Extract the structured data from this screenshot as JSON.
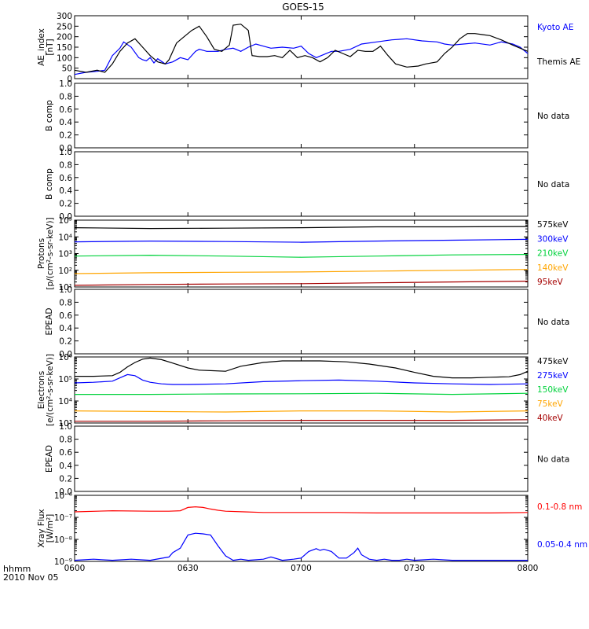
{
  "title": "GOES-15",
  "footer": {
    "line1": "hhmm",
    "line2": "2010 Nov 05"
  },
  "x_axis": {
    "ticks": [
      "0600",
      "0630",
      "0700",
      "0730",
      "0800"
    ],
    "range": [
      0,
      120
    ],
    "unit": "minutes after 0600"
  },
  "colors": {
    "black": "#000000",
    "blue": "#0000ff",
    "green": "#00d23c",
    "orange": "#ffa500",
    "red": "#ff0000",
    "darkred": "#a50000"
  },
  "chart_data": [
    {
      "id": "ae",
      "type": "line",
      "ylabel": [
        "AE_index",
        "[nT]"
      ],
      "scale": "linear",
      "ylim": [
        0,
        300
      ],
      "yticks": [
        "0",
        "50",
        "100",
        "150",
        "200",
        "250",
        "300"
      ],
      "series": [
        {
          "name": "Kyoto AE",
          "color": "#0000ff",
          "x": [
            0,
            3,
            6,
            8,
            10,
            12,
            13,
            15,
            17,
            18,
            19,
            20,
            21,
            22,
            24,
            26,
            28,
            30,
            32,
            33,
            35,
            38,
            40,
            42,
            44,
            46,
            48,
            50,
            52,
            55,
            58,
            60,
            62,
            64,
            66,
            68,
            70,
            73,
            76,
            80,
            84,
            88,
            92,
            96,
            98,
            100,
            103,
            106,
            110,
            113,
            116,
            118,
            120
          ],
          "y": [
            20,
            30,
            35,
            40,
            110,
            145,
            175,
            150,
            100,
            90,
            85,
            100,
            75,
            95,
            70,
            80,
            100,
            90,
            130,
            140,
            130,
            130,
            140,
            145,
            130,
            150,
            165,
            155,
            145,
            150,
            145,
            155,
            120,
            100,
            115,
            130,
            130,
            140,
            165,
            175,
            185,
            190,
            180,
            175,
            165,
            160,
            165,
            170,
            160,
            175,
            165,
            150,
            120
          ]
        },
        {
          "name": "Themis AE",
          "color": "#000000",
          "x": [
            0,
            3,
            6,
            8,
            10,
            12,
            14,
            16,
            18,
            20,
            22,
            24,
            25,
            27,
            29,
            31,
            33,
            35,
            37,
            39,
            41,
            42,
            44,
            46,
            47,
            49,
            51,
            53,
            55,
            57,
            59,
            61,
            63,
            65,
            67,
            69,
            71,
            73,
            75,
            77,
            79,
            81,
            83,
            85,
            88,
            91,
            93,
            96,
            98,
            100,
            102,
            104,
            106,
            108,
            110,
            113,
            116,
            120
          ],
          "y": [
            40,
            30,
            40,
            30,
            70,
            130,
            170,
            190,
            150,
            110,
            80,
            70,
            90,
            170,
            200,
            230,
            250,
            200,
            140,
            130,
            160,
            255,
            260,
            230,
            110,
            105,
            105,
            110,
            100,
            135,
            100,
            110,
            100,
            80,
            100,
            135,
            120,
            105,
            135,
            130,
            130,
            155,
            110,
            70,
            55,
            60,
            70,
            80,
            120,
            150,
            190,
            215,
            215,
            210,
            205,
            185,
            160,
            130
          ]
        }
      ]
    },
    {
      "id": "b1",
      "type": "line",
      "ylabel": [
        "B comp"
      ],
      "scale": "linear",
      "ylim": [
        0,
        1
      ],
      "yticks": [
        "0.0",
        "0.2",
        "0.4",
        "0.6",
        "0.8",
        "1.0"
      ],
      "series": [],
      "note": "No data"
    },
    {
      "id": "b2",
      "type": "line",
      "ylabel": [
        "B comp"
      ],
      "scale": "linear",
      "ylim": [
        0,
        1
      ],
      "yticks": [
        "0.0",
        "0.2",
        "0.4",
        "0.6",
        "0.8",
        "1.0"
      ],
      "series": [],
      "note": "No data"
    },
    {
      "id": "protons",
      "type": "line",
      "ylabel": [
        "Protons",
        "[p/(cm²-s-sr-keV)]"
      ],
      "scale": "log",
      "ylim": [
        1,
        5
      ],
      "yticks": [
        "10¹",
        "10²",
        "10³",
        "10⁴",
        "10⁵"
      ],
      "series": [
        {
          "name": "575keV",
          "color": "#000000",
          "x": [
            0,
            20,
            40,
            60,
            80,
            100,
            120
          ],
          "y": [
            4.55,
            4.5,
            4.52,
            4.55,
            4.6,
            4.6,
            4.62
          ]
        },
        {
          "name": "300keV",
          "color": "#0000ff",
          "x": [
            0,
            20,
            40,
            60,
            80,
            100,
            120
          ],
          "y": [
            3.7,
            3.75,
            3.72,
            3.68,
            3.75,
            3.8,
            3.85
          ]
        },
        {
          "name": "210keV",
          "color": "#00d23c",
          "x": [
            0,
            20,
            40,
            60,
            80,
            100,
            120
          ],
          "y": [
            2.85,
            2.9,
            2.85,
            2.78,
            2.85,
            2.92,
            2.95
          ]
        },
        {
          "name": "140keV",
          "color": "#ffa500",
          "x": [
            0,
            20,
            40,
            60,
            80,
            100,
            120
          ],
          "y": [
            1.8,
            1.85,
            1.88,
            1.9,
            1.95,
            2.0,
            2.05
          ]
        },
        {
          "name": "95keV",
          "color": "#a50000",
          "x": [
            0,
            20,
            40,
            60,
            80,
            100,
            120
          ],
          "y": [
            1.1,
            1.15,
            1.18,
            1.2,
            1.25,
            1.3,
            1.35
          ]
        }
      ]
    },
    {
      "id": "epead1",
      "type": "line",
      "ylabel": [
        "EPEAD"
      ],
      "scale": "linear",
      "ylim": [
        0,
        1
      ],
      "yticks": [
        "0.0",
        "0.2",
        "0.4",
        "0.6",
        "0.8",
        "1.0"
      ],
      "series": [],
      "note": "No data"
    },
    {
      "id": "electrons",
      "type": "line",
      "ylabel": [
        "Electrons",
        "[e/(cm²-s-sr-keV)]"
      ],
      "scale": "log",
      "ylim": [
        3,
        6
      ],
      "yticks": [
        "10³",
        "10⁴",
        "10⁵",
        "10⁶"
      ],
      "series": [
        {
          "name": "475keV",
          "color": "#000000",
          "x": [
            0,
            5,
            10,
            12,
            14,
            16,
            18,
            20,
            23,
            26,
            30,
            33,
            36,
            40,
            44,
            50,
            55,
            60,
            65,
            72,
            78,
            85,
            90,
            95,
            100,
            105,
            110,
            115,
            118,
            120
          ],
          "y": [
            5.12,
            5.12,
            5.15,
            5.3,
            5.55,
            5.75,
            5.9,
            5.95,
            5.88,
            5.72,
            5.5,
            5.4,
            5.38,
            5.35,
            5.58,
            5.75,
            5.82,
            5.82,
            5.82,
            5.78,
            5.68,
            5.5,
            5.3,
            5.12,
            5.05,
            5.05,
            5.08,
            5.1,
            5.2,
            5.35
          ]
        },
        {
          "name": "275keV",
          "color": "#0000ff",
          "x": [
            0,
            5,
            10,
            12,
            14,
            16,
            18,
            20,
            23,
            26,
            30,
            40,
            50,
            60,
            70,
            80,
            90,
            100,
            110,
            120
          ],
          "y": [
            4.82,
            4.85,
            4.9,
            5.05,
            5.2,
            5.15,
            4.95,
            4.85,
            4.78,
            4.75,
            4.75,
            4.78,
            4.88,
            4.92,
            4.95,
            4.9,
            4.82,
            4.78,
            4.75,
            4.78
          ]
        },
        {
          "name": "150keV",
          "color": "#00d23c",
          "x": [
            0,
            20,
            40,
            60,
            80,
            100,
            120
          ],
          "y": [
            4.3,
            4.3,
            4.32,
            4.33,
            4.35,
            4.3,
            4.35
          ]
        },
        {
          "name": "75keV",
          "color": "#ffa500",
          "x": [
            0,
            20,
            40,
            60,
            80,
            100,
            120
          ],
          "y": [
            3.55,
            3.52,
            3.5,
            3.55,
            3.55,
            3.5,
            3.55
          ]
        },
        {
          "name": "40keV",
          "color": "#a50000",
          "x": [
            0,
            20,
            40,
            60,
            80,
            100,
            120
          ],
          "y": [
            3.08,
            3.08,
            3.1,
            3.12,
            3.12,
            3.12,
            3.15
          ]
        }
      ]
    },
    {
      "id": "epead2",
      "type": "line",
      "ylabel": [
        "EPEAD"
      ],
      "scale": "linear",
      "ylim": [
        0,
        1
      ],
      "yticks": [
        "0.0",
        "0.2",
        "0.4",
        "0.6",
        "0.8",
        "1.0"
      ],
      "series": [],
      "note": "No data"
    },
    {
      "id": "xray",
      "type": "line",
      "ylabel": [
        "Xray Flux",
        "[W/m²]"
      ],
      "scale": "log",
      "ylim": [
        -9,
        -6
      ],
      "yticks": [
        "10⁻⁹",
        "10⁻⁸",
        "10⁻⁷",
        "10⁻⁶"
      ],
      "series": [
        {
          "name": "0.1-0.8 nm",
          "color": "#ff0000",
          "x": [
            0,
            10,
            20,
            25,
            28,
            30,
            32,
            34,
            36,
            38,
            40,
            45,
            50,
            55,
            60,
            70,
            80,
            90,
            100,
            110,
            120
          ],
          "y": [
            -6.75,
            -6.7,
            -6.72,
            -6.72,
            -6.7,
            -6.55,
            -6.52,
            -6.55,
            -6.62,
            -6.68,
            -6.72,
            -6.75,
            -6.78,
            -6.78,
            -6.78,
            -6.78,
            -6.8,
            -6.8,
            -6.8,
            -6.8,
            -6.78
          ]
        },
        {
          "name": "0.05-0.4 nm",
          "color": "#0000ff",
          "x": [
            0,
            5,
            10,
            15,
            20,
            25,
            26,
            28,
            29,
            30,
            32,
            34,
            36,
            38,
            40,
            42,
            44,
            46,
            50,
            52,
            55,
            58,
            60,
            62,
            64,
            65,
            66,
            68,
            70,
            72,
            74,
            75,
            76,
            78,
            80,
            82,
            84,
            86,
            88,
            90,
            95,
            100,
            110,
            120
          ],
          "y": [
            -8.95,
            -8.9,
            -8.95,
            -8.9,
            -8.95,
            -8.8,
            -8.6,
            -8.4,
            -8.1,
            -7.8,
            -7.72,
            -7.75,
            -7.8,
            -8.3,
            -8.75,
            -8.95,
            -8.9,
            -8.95,
            -8.9,
            -8.8,
            -8.95,
            -8.9,
            -8.85,
            -8.55,
            -8.42,
            -8.5,
            -8.45,
            -8.55,
            -8.85,
            -8.85,
            -8.6,
            -8.4,
            -8.7,
            -8.9,
            -8.95,
            -8.9,
            -8.95,
            -8.95,
            -8.9,
            -8.95,
            -8.9,
            -8.95,
            -8.95,
            -8.95
          ]
        }
      ]
    }
  ]
}
